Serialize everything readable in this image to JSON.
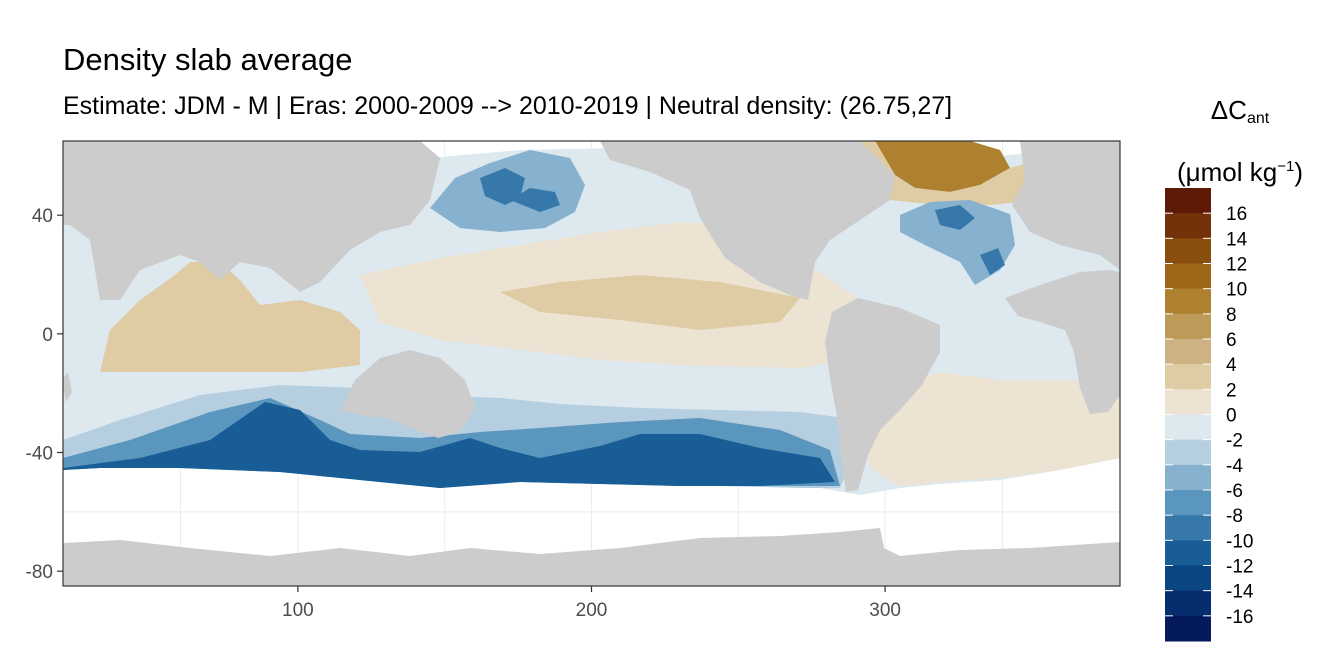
{
  "title": "Density slab average",
  "subtitle": "Estimate: JDM - M | Eras: 2000-2009 --> 2010-2019 | Neutral density: (26.75,27]",
  "legend": {
    "title_main": "ΔC",
    "title_sub": "ant",
    "unit_prefix": "(μmol kg",
    "unit_sup": "−1",
    "unit_suffix": ")"
  },
  "colors": {
    "land": "#cccccc",
    "no_data": "#ffffff",
    "panel_border": "#333333",
    "grid": "#ebebeb",
    "tick_text": "#4d4d4d"
  },
  "chart_data": {
    "type": "heatmap",
    "title": "Density slab average",
    "subtitle": "Estimate: JDM - M | Eras: 2000-2009 --> 2010-2019 | Neutral density: (26.75,27]",
    "xlabel": "",
    "ylabel": "",
    "xlim": [
      20,
      380
    ],
    "ylim": [
      -85,
      65
    ],
    "x_ticks": [
      100,
      200,
      300
    ],
    "y_ticks": [
      40,
      0,
      -40,
      -80
    ],
    "grid": true,
    "legend_position": "right",
    "colorbar": {
      "breaks": [
        16,
        14,
        12,
        10,
        8,
        6,
        4,
        2,
        0,
        -2,
        -4,
        -6,
        -8,
        -10,
        -12,
        -14,
        -16
      ],
      "colors": [
        "#5e1a04",
        "#74320a",
        "#8a4e0f",
        "#9c6817",
        "#ad8130",
        "#bd9a57",
        "#cdb383",
        "#dfcca5",
        "#ece3d3",
        "#dde8ef",
        "#b6cfe0",
        "#87b2cf",
        "#5b96bf",
        "#3778aa",
        "#185d95",
        "#0b4482",
        "#062d6e",
        "#041a5c"
      ]
    }
  }
}
